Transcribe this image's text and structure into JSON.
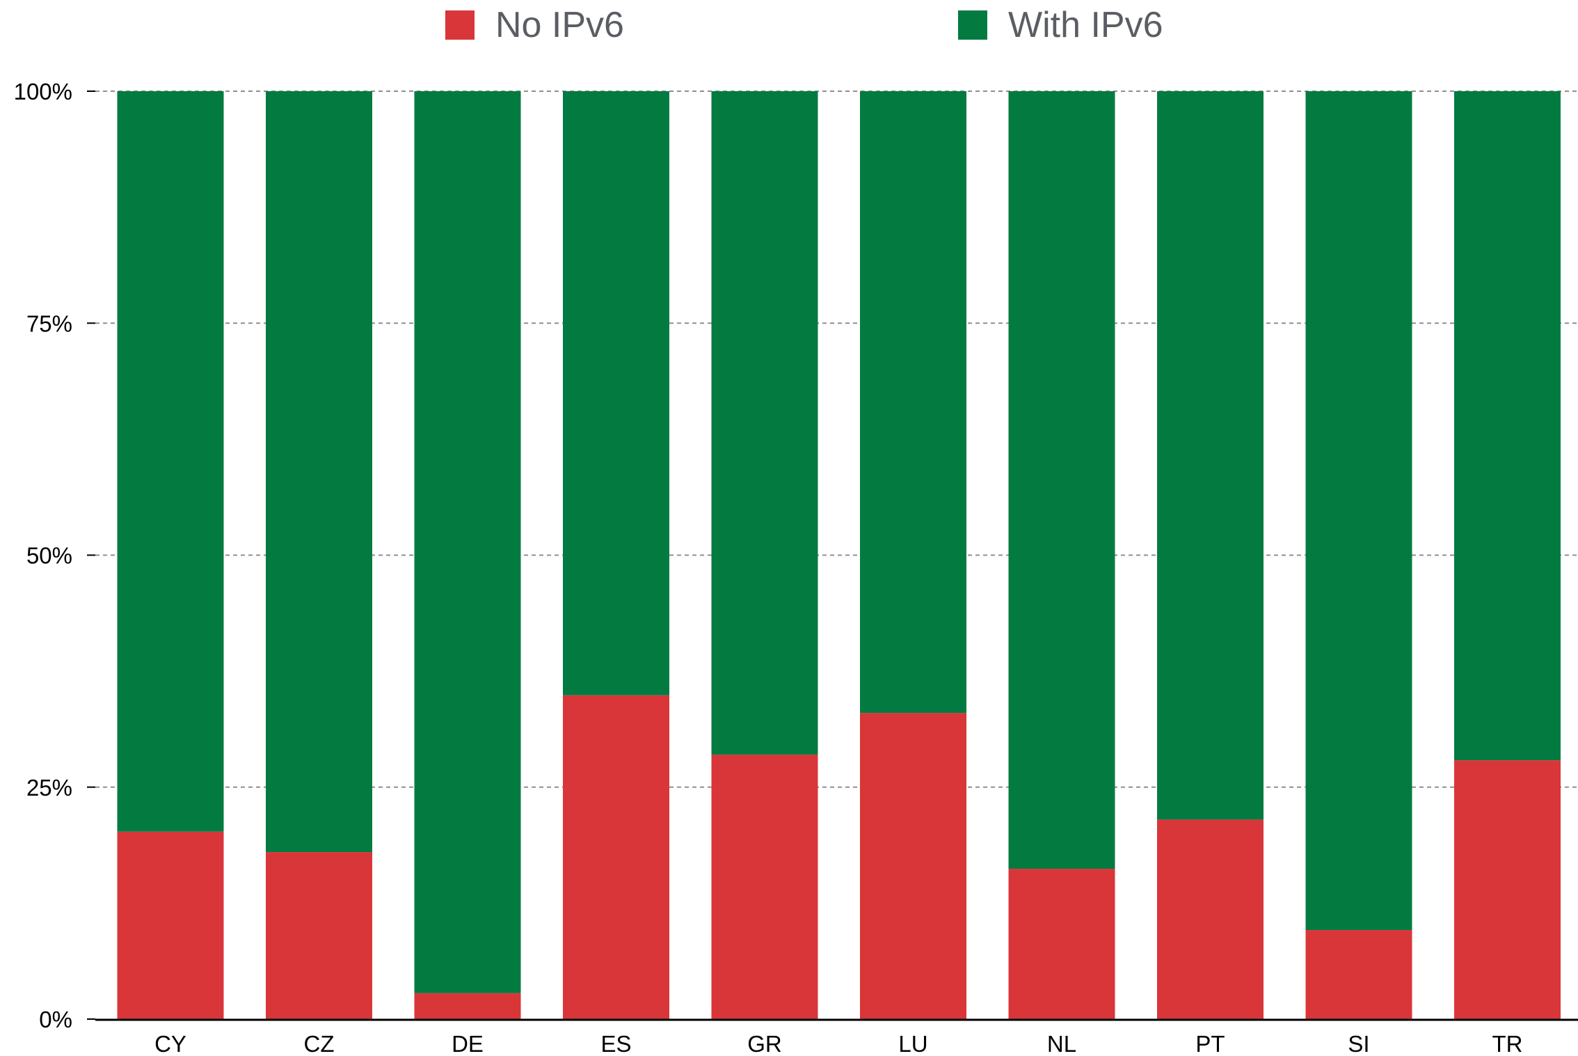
{
  "chart_data": {
    "type": "bar",
    "stacked": true,
    "categories": [
      "CY",
      "CZ",
      "DE",
      "ES",
      "GR",
      "LU",
      "NL",
      "PT",
      "SI",
      "TR"
    ],
    "series": [
      {
        "name": "No IPv6",
        "color": "#d9363a",
        "values": [
          20.2,
          18.0,
          2.8,
          34.9,
          28.5,
          33.0,
          16.2,
          21.5,
          9.6,
          27.9
        ]
      },
      {
        "name": "With IPv6",
        "color": "#037b40",
        "values": [
          79.8,
          82.0,
          97.2,
          65.1,
          71.5,
          67.0,
          83.8,
          78.5,
          90.4,
          72.1
        ]
      }
    ],
    "y_ticks": [
      "0%",
      "25%",
      "50%",
      "75%",
      "100%"
    ],
    "ylim": [
      0,
      100
    ],
    "title": "",
    "xlabel": "",
    "ylabel": "",
    "grid": true,
    "legend_position": "top-center"
  }
}
